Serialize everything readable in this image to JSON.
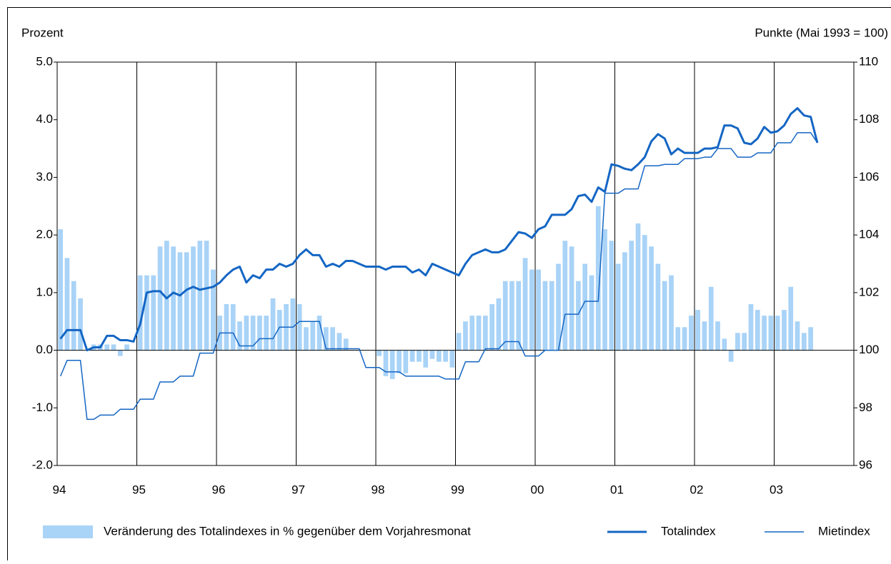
{
  "chart_data": {
    "type": "bar",
    "ylabel": "Prozent",
    "y2label": "Punkte (Mai 1993 = 100)",
    "categories": [
      "94",
      null,
      null,
      null,
      null,
      null,
      null,
      null,
      null,
      null,
      null,
      null,
      "95",
      null,
      null,
      null,
      null,
      null,
      null,
      null,
      null,
      null,
      null,
      null,
      "96",
      null,
      null,
      null,
      null,
      null,
      null,
      null,
      null,
      null,
      null,
      null,
      "97",
      null,
      null,
      null,
      null,
      null,
      null,
      null,
      null,
      null,
      null,
      null,
      "98",
      null,
      null,
      null,
      null,
      null,
      null,
      null,
      null,
      null,
      null,
      null,
      "99",
      null,
      null,
      null,
      null,
      null,
      null,
      null,
      null,
      null,
      null,
      null,
      "00",
      null,
      null,
      null,
      null,
      null,
      null,
      null,
      null,
      null,
      null,
      null,
      "01",
      null,
      null,
      null,
      null,
      null,
      null,
      null,
      null,
      null,
      null,
      null,
      "02",
      null,
      null,
      null,
      null,
      null,
      null,
      null,
      null,
      null,
      null,
      null,
      "03",
      null,
      null,
      null,
      null,
      null,
      null,
      null,
      null,
      null,
      null,
      null
    ],
    "series": [
      {
        "name": "Veränderung des Totalindexes in % gegenüber dem Vorjahresmonat",
        "type": "bar",
        "color": "#a9d3f7",
        "values": [
          2.1,
          1.6,
          1.2,
          0.9,
          0.0,
          0.1,
          0.1,
          0.1,
          0.1,
          -0.1,
          0.1,
          0.0,
          1.3,
          1.3,
          1.3,
          1.8,
          1.9,
          1.8,
          1.7,
          1.7,
          1.8,
          1.9,
          1.9,
          1.4,
          0.6,
          0.8,
          0.8,
          0.5,
          0.6,
          0.6,
          0.6,
          0.6,
          0.9,
          0.7,
          0.8,
          0.9,
          0.8,
          0.4,
          0.5,
          0.6,
          0.4,
          0.4,
          0.3,
          0.2,
          0.0,
          0.0,
          0.0,
          0.0,
          -0.1,
          -0.45,
          -0.5,
          -0.4,
          -0.4,
          -0.2,
          -0.2,
          -0.3,
          -0.15,
          -0.2,
          -0.2,
          -0.3,
          0.3,
          0.5,
          0.6,
          0.6,
          0.6,
          0.8,
          0.9,
          1.2,
          1.2,
          1.2,
          1.6,
          1.4,
          1.4,
          1.2,
          1.2,
          1.5,
          1.9,
          1.8,
          1.2,
          1.5,
          1.3,
          2.5,
          2.1,
          1.9,
          1.5,
          1.7,
          1.9,
          2.2,
          2.0,
          1.8,
          1.5,
          1.2,
          1.3,
          0.4,
          0.4,
          0.6,
          0.7,
          0.5,
          1.1,
          0.5,
          0.2,
          -0.2,
          0.3,
          0.3,
          0.8,
          0.7,
          0.6,
          0.6,
          0.6,
          0.7,
          1.1,
          0.5,
          0.3,
          0.4,
          null,
          null,
          null,
          null,
          null,
          null
        ]
      },
      {
        "name": "Totalindex",
        "type": "line",
        "axis": "y2",
        "color": "#1466c4",
        "width": 3,
        "values": [
          100.4,
          100.7,
          100.7,
          100.7,
          100.0,
          100.1,
          100.1,
          100.5,
          100.5,
          100.35,
          100.35,
          100.3,
          100.9,
          102.0,
          102.05,
          102.05,
          101.8,
          102.0,
          101.9,
          102.1,
          102.2,
          102.1,
          102.15,
          102.2,
          102.35,
          102.6,
          102.8,
          102.9,
          102.35,
          102.6,
          102.5,
          102.8,
          102.8,
          103.0,
          102.9,
          103.0,
          103.3,
          103.5,
          103.3,
          103.3,
          102.9,
          103.0,
          102.9,
          103.1,
          103.1,
          103.0,
          102.9,
          102.9,
          102.9,
          102.8,
          102.9,
          102.9,
          102.9,
          102.7,
          102.8,
          102.6,
          103.0,
          102.9,
          102.8,
          102.7,
          102.6,
          103.0,
          103.3,
          103.4,
          103.5,
          103.4,
          103.4,
          103.5,
          103.8,
          104.1,
          104.05,
          103.9,
          104.2,
          104.3,
          104.7,
          104.7,
          104.7,
          104.9,
          105.35,
          105.4,
          105.15,
          105.65,
          105.5,
          106.45,
          106.4,
          106.3,
          106.25,
          106.45,
          106.7,
          107.25,
          107.5,
          107.35,
          106.8,
          107.0,
          106.85,
          106.85,
          106.85,
          107.0,
          107.0,
          107.05,
          107.8,
          107.8,
          107.7,
          107.2,
          107.15,
          107.35,
          107.75,
          107.55,
          107.6,
          107.8,
          108.2,
          108.4,
          108.15,
          108.1,
          107.2,
          null,
          null,
          null,
          null,
          null
        ]
      },
      {
        "name": "Mietindex",
        "type": "line",
        "axis": "y2",
        "color": "#1466c4",
        "width": 1.5,
        "values": [
          99.1,
          99.65,
          99.65,
          99.65,
          97.6,
          97.6,
          97.75,
          97.75,
          97.75,
          97.95,
          97.95,
          97.95,
          98.3,
          98.3,
          98.3,
          98.9,
          98.9,
          98.9,
          99.1,
          99.1,
          99.1,
          99.9,
          99.9,
          99.9,
          100.6,
          100.6,
          100.6,
          100.15,
          100.15,
          100.15,
          100.4,
          100.4,
          100.4,
          100.8,
          100.8,
          100.8,
          101.0,
          101.0,
          101.0,
          101.0,
          100.05,
          100.05,
          100.05,
          100.05,
          100.05,
          100.05,
          99.4,
          99.4,
          99.4,
          99.25,
          99.25,
          99.25,
          99.1,
          99.1,
          99.1,
          99.1,
          99.1,
          99.1,
          99.0,
          99.0,
          99.0,
          99.6,
          99.6,
          99.6,
          100.05,
          100.05,
          100.05,
          100.3,
          100.3,
          100.3,
          99.8,
          99.8,
          99.8,
          100.0,
          100.0,
          100.0,
          101.25,
          101.25,
          101.25,
          101.7,
          101.7,
          101.7,
          105.45,
          105.45,
          105.45,
          105.6,
          105.6,
          105.6,
          106.4,
          106.4,
          106.4,
          106.45,
          106.45,
          106.45,
          106.65,
          106.65,
          106.65,
          106.7,
          106.7,
          107.0,
          107.0,
          107.0,
          106.7,
          106.7,
          106.7,
          106.85,
          106.85,
          106.85,
          107.2,
          107.2,
          107.2,
          107.55,
          107.55,
          107.55,
          107.2,
          null,
          null,
          null,
          null,
          null
        ]
      }
    ],
    "ylim": [
      -2,
      5
    ],
    "yticks": [
      {
        "value": -2,
        "label": "-2.0"
      },
      {
        "value": -1,
        "label": "-1.0"
      },
      {
        "value": 0,
        "label": "0.0"
      },
      {
        "value": 1,
        "label": "1.0"
      },
      {
        "value": 2,
        "label": "2.0"
      },
      {
        "value": 3,
        "label": "3.0"
      },
      {
        "value": 4,
        "label": "4.0"
      },
      {
        "value": 5,
        "label": "5.0"
      }
    ],
    "y2lim": [
      96,
      110
    ],
    "y2ticks": [
      96,
      98,
      100,
      102,
      104,
      106,
      108,
      110
    ],
    "grid": true,
    "legend": "bottom"
  }
}
